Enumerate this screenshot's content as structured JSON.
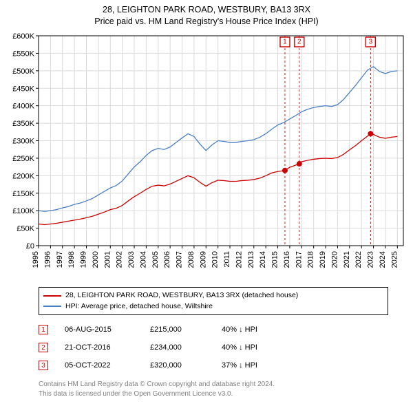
{
  "title_line1": "28, LEIGHTON PARK ROAD, WESTBURY, BA13 3RX",
  "title_line2": "Price paid vs. HM Land Registry's House Price Index (HPI)",
  "title_fontsize": 12.5,
  "chart": {
    "type": "line",
    "background_color": "#ffffff",
    "grid_color": "#d9d9d9",
    "axis_color": "#000000",
    "font_color": "#000000",
    "xlim": [
      1995,
      2025.5
    ],
    "ylim": [
      0,
      600000
    ],
    "x_ticks": [
      1995,
      1996,
      1997,
      1998,
      1999,
      2000,
      2001,
      2002,
      2003,
      2004,
      2005,
      2006,
      2007,
      2008,
      2009,
      2010,
      2011,
      2012,
      2013,
      2014,
      2015,
      2016,
      2017,
      2018,
      2019,
      2020,
      2021,
      2022,
      2023,
      2024,
      2025
    ],
    "y_ticks": [
      0,
      50000,
      100000,
      150000,
      200000,
      250000,
      300000,
      350000,
      400000,
      450000,
      500000,
      550000,
      600000
    ],
    "y_tick_labels": [
      "£0",
      "£50K",
      "£100K",
      "£150K",
      "£200K",
      "£250K",
      "£300K",
      "£350K",
      "£400K",
      "£450K",
      "£500K",
      "£550K",
      "£600K"
    ],
    "tick_fontsize": 11,
    "series": [
      {
        "name": "hpi",
        "label": "HPI: Average price, detached house, Wiltshire",
        "color": "#4a7fc4",
        "line_width": 1.3,
        "data": [
          [
            1995,
            100000
          ],
          [
            1995.5,
            98000
          ],
          [
            1996,
            100000
          ],
          [
            1996.5,
            103000
          ],
          [
            1997,
            108000
          ],
          [
            1997.5,
            112000
          ],
          [
            1998,
            118000
          ],
          [
            1998.5,
            122000
          ],
          [
            1999,
            128000
          ],
          [
            1999.5,
            135000
          ],
          [
            2000,
            145000
          ],
          [
            2000.5,
            155000
          ],
          [
            2001,
            165000
          ],
          [
            2001.5,
            172000
          ],
          [
            2002,
            185000
          ],
          [
            2002.5,
            205000
          ],
          [
            2003,
            225000
          ],
          [
            2003.5,
            240000
          ],
          [
            2004,
            258000
          ],
          [
            2004.5,
            272000
          ],
          [
            2005,
            278000
          ],
          [
            2005.5,
            275000
          ],
          [
            2006,
            282000
          ],
          [
            2006.5,
            295000
          ],
          [
            2007,
            308000
          ],
          [
            2007.5,
            320000
          ],
          [
            2008,
            312000
          ],
          [
            2008.5,
            290000
          ],
          [
            2009,
            272000
          ],
          [
            2009.5,
            288000
          ],
          [
            2010,
            300000
          ],
          [
            2010.5,
            298000
          ],
          [
            2011,
            295000
          ],
          [
            2011.5,
            295000
          ],
          [
            2012,
            298000
          ],
          [
            2012.5,
            300000
          ],
          [
            2013,
            303000
          ],
          [
            2013.5,
            310000
          ],
          [
            2014,
            320000
          ],
          [
            2014.5,
            333000
          ],
          [
            2015,
            345000
          ],
          [
            2015.5,
            352000
          ],
          [
            2016,
            362000
          ],
          [
            2016.5,
            372000
          ],
          [
            2017,
            383000
          ],
          [
            2017.5,
            390000
          ],
          [
            2018,
            395000
          ],
          [
            2018.5,
            398000
          ],
          [
            2019,
            400000
          ],
          [
            2019.5,
            398000
          ],
          [
            2020,
            403000
          ],
          [
            2020.5,
            418000
          ],
          [
            2021,
            438000
          ],
          [
            2021.5,
            458000
          ],
          [
            2022,
            480000
          ],
          [
            2022.5,
            502000
          ],
          [
            2023,
            512000
          ],
          [
            2023.5,
            498000
          ],
          [
            2024,
            492000
          ],
          [
            2024.5,
            498000
          ],
          [
            2025,
            500000
          ]
        ]
      },
      {
        "name": "price_paid",
        "label": "28, LEIGHTON PARK ROAD, WESTBURY, BA13 3RX (detached house)",
        "color": "#cc0000",
        "line_width": 1.3,
        "data": [
          [
            1995,
            62000
          ],
          [
            1995.5,
            60000
          ],
          [
            1996,
            62000
          ],
          [
            1996.5,
            64000
          ],
          [
            1997,
            67000
          ],
          [
            1997.5,
            70000
          ],
          [
            1998,
            73000
          ],
          [
            1998.5,
            76000
          ],
          [
            1999,
            80000
          ],
          [
            1999.5,
            84000
          ],
          [
            2000,
            90000
          ],
          [
            2000.5,
            96000
          ],
          [
            2001,
            103000
          ],
          [
            2001.5,
            107000
          ],
          [
            2002,
            115000
          ],
          [
            2002.5,
            128000
          ],
          [
            2003,
            140000
          ],
          [
            2003.5,
            150000
          ],
          [
            2004,
            161000
          ],
          [
            2004.5,
            170000
          ],
          [
            2005,
            173000
          ],
          [
            2005.5,
            171000
          ],
          [
            2006,
            176000
          ],
          [
            2006.5,
            184000
          ],
          [
            2007,
            192000
          ],
          [
            2007.5,
            200000
          ],
          [
            2008,
            194000
          ],
          [
            2008.5,
            181000
          ],
          [
            2009,
            170000
          ],
          [
            2009.5,
            180000
          ],
          [
            2010,
            187000
          ],
          [
            2010.5,
            186000
          ],
          [
            2011,
            184000
          ],
          [
            2011.5,
            184000
          ],
          [
            2012,
            186000
          ],
          [
            2012.5,
            187000
          ],
          [
            2013,
            189000
          ],
          [
            2013.5,
            193000
          ],
          [
            2014,
            200000
          ],
          [
            2014.5,
            208000
          ],
          [
            2015,
            212000
          ],
          [
            2015.6,
            215000
          ],
          [
            2016,
            224000
          ],
          [
            2016.8,
            234000
          ],
          [
            2017,
            240000
          ],
          [
            2017.5,
            244000
          ],
          [
            2018,
            247000
          ],
          [
            2018.5,
            249000
          ],
          [
            2019,
            250000
          ],
          [
            2019.5,
            249000
          ],
          [
            2020,
            252000
          ],
          [
            2020.5,
            261000
          ],
          [
            2021,
            274000
          ],
          [
            2021.5,
            286000
          ],
          [
            2022,
            300000
          ],
          [
            2022.76,
            320000
          ],
          [
            2023,
            318000
          ],
          [
            2023.5,
            310000
          ],
          [
            2024,
            307000
          ],
          [
            2024.5,
            310000
          ],
          [
            2025,
            312000
          ]
        ],
        "markers": [
          {
            "x": 2015.6,
            "y": 215000
          },
          {
            "x": 2016.8,
            "y": 234000
          },
          {
            "x": 2022.76,
            "y": 320000
          }
        ],
        "marker_size": 4,
        "marker_fill": "#cc0000"
      }
    ],
    "event_lines": [
      {
        "num": "1",
        "x": 2015.6,
        "color": "#cc0000",
        "dash": "3,3"
      },
      {
        "num": "2",
        "x": 2016.8,
        "color": "#cc0000",
        "dash": "3,3"
      },
      {
        "num": "3",
        "x": 2022.76,
        "color": "#cc0000",
        "dash": "3,3"
      }
    ]
  },
  "legend": {
    "border_color": "#000000",
    "items": [
      {
        "color": "#cc0000",
        "label": "28, LEIGHTON PARK ROAD, WESTBURY, BA13 3RX (detached house)"
      },
      {
        "color": "#4a7fc4",
        "label": "HPI: Average price, detached house, Wiltshire"
      }
    ]
  },
  "events_table": [
    {
      "num": "1",
      "color": "#cc0000",
      "date": "06-AUG-2015",
      "price": "£215,000",
      "pct": "40% ↓ HPI"
    },
    {
      "num": "2",
      "color": "#cc0000",
      "date": "21-OCT-2016",
      "price": "£234,000",
      "pct": "40% ↓ HPI"
    },
    {
      "num": "3",
      "color": "#cc0000",
      "date": "05-OCT-2022",
      "price": "£320,000",
      "pct": "37% ↓ HPI"
    }
  ],
  "copyright_line1": "Contains HM Land Registry data © Crown copyright and database right 2024.",
  "copyright_line2": "This data is licensed under the Open Government Licence v3.0."
}
